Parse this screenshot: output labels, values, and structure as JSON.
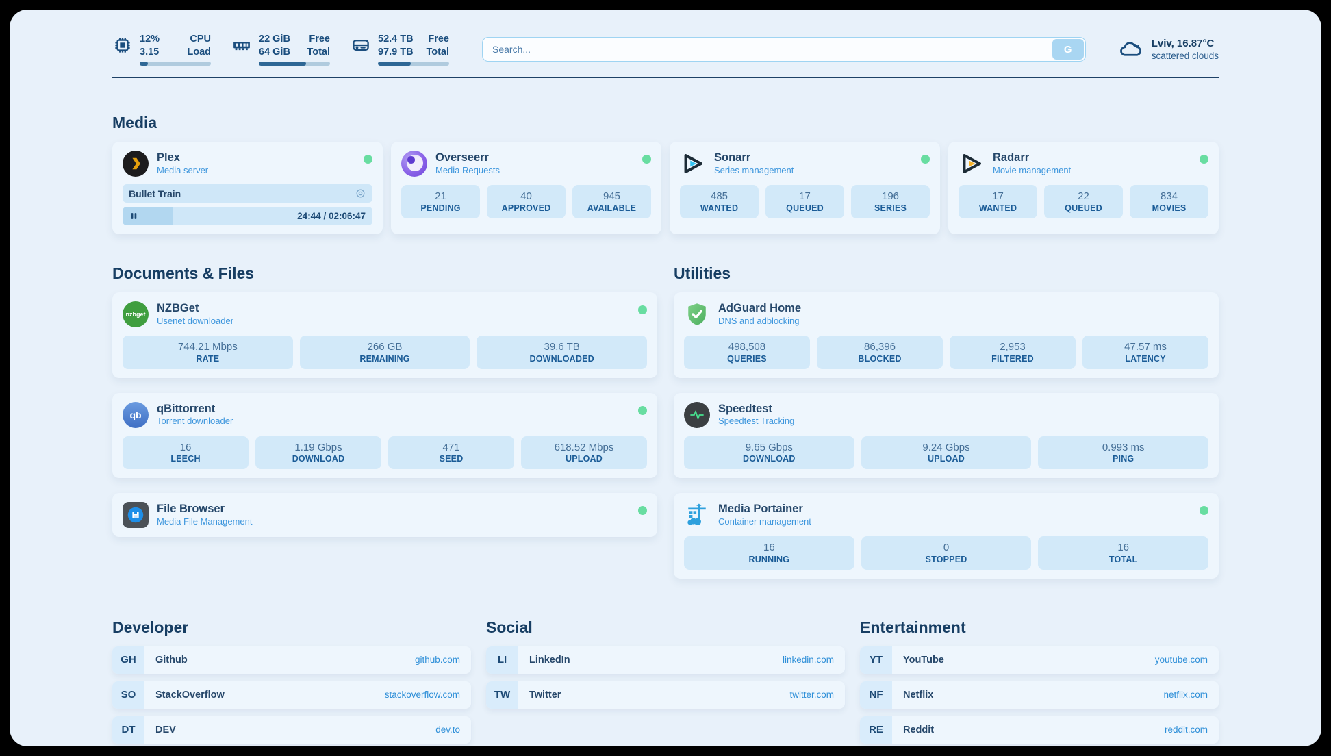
{
  "colors": {
    "background": "#e8f1fa",
    "card": "#eef6fd",
    "stat_box": "#d2e9f9",
    "accent_navy": "#1b4e7e",
    "subtitle_blue": "#3d96dd",
    "link_blue": "#2e8fd8",
    "status_online": "#68dda1",
    "progress_fill": "#2e6795"
  },
  "header": {
    "cpu": {
      "values": [
        "12%",
        "3.15"
      ],
      "labels": [
        "CPU",
        "Load"
      ],
      "progress_pct": 12
    },
    "ram": {
      "values": [
        "22 GiB",
        "64 GiB"
      ],
      "labels": [
        "Free",
        "Total"
      ],
      "progress_pct": 66
    },
    "disk": {
      "values": [
        "52.4 TB",
        "97.9 TB"
      ],
      "labels": [
        "Free",
        "Total"
      ],
      "progress_pct": 46
    },
    "search": {
      "placeholder": "Search...",
      "button_label": "G"
    },
    "weather": {
      "location": "Lviv, 16.87°C",
      "condition": "scattered clouds"
    }
  },
  "media": {
    "heading": "Media",
    "plex": {
      "title": "Plex",
      "subtitle": "Media server",
      "now_playing": "Bullet Train",
      "time": "24:44 / 02:06:47",
      "progress_pct": 20
    },
    "overseerr": {
      "title": "Overseerr",
      "subtitle": "Media Requests",
      "stats": [
        {
          "value": "21",
          "label": "PENDING"
        },
        {
          "value": "40",
          "label": "APPROVED"
        },
        {
          "value": "945",
          "label": "AVAILABLE"
        }
      ]
    },
    "sonarr": {
      "title": "Sonarr",
      "subtitle": "Series management",
      "stats": [
        {
          "value": "485",
          "label": "WANTED"
        },
        {
          "value": "17",
          "label": "QUEUED"
        },
        {
          "value": "196",
          "label": "SERIES"
        }
      ]
    },
    "radarr": {
      "title": "Radarr",
      "subtitle": "Movie management",
      "stats": [
        {
          "value": "17",
          "label": "WANTED"
        },
        {
          "value": "22",
          "label": "QUEUED"
        },
        {
          "value": "834",
          "label": "MOVIES"
        }
      ]
    }
  },
  "documents": {
    "heading": "Documents & Files",
    "nzbget": {
      "title": "NZBGet",
      "subtitle": "Usenet downloader",
      "icon_text": "nzbget",
      "stats": [
        {
          "value": "744.21 Mbps",
          "label": "RATE"
        },
        {
          "value": "266 GB",
          "label": "REMAINING"
        },
        {
          "value": "39.6 TB",
          "label": "DOWNLOADED"
        }
      ]
    },
    "qbittorrent": {
      "title": "qBittorrent",
      "subtitle": "Torrent downloader",
      "icon_text": "qb",
      "stats": [
        {
          "value": "16",
          "label": "LEECH"
        },
        {
          "value": "1.19 Gbps",
          "label": "DOWNLOAD"
        },
        {
          "value": "471",
          "label": "SEED"
        },
        {
          "value": "618.52 Mbps",
          "label": "UPLOAD"
        }
      ]
    },
    "filebrowser": {
      "title": "File Browser",
      "subtitle": "Media File Management"
    }
  },
  "utilities": {
    "heading": "Utilities",
    "adguard": {
      "title": "AdGuard Home",
      "subtitle": "DNS and adblocking",
      "stats": [
        {
          "value": "498,508",
          "label": "QUERIES"
        },
        {
          "value": "86,396",
          "label": "BLOCKED"
        },
        {
          "value": "2,953",
          "label": "FILTERED"
        },
        {
          "value": "47.57 ms",
          "label": "LATENCY"
        }
      ]
    },
    "speedtest": {
      "title": "Speedtest",
      "subtitle": "Speedtest Tracking",
      "stats": [
        {
          "value": "9.65 Gbps",
          "label": "DOWNLOAD"
        },
        {
          "value": "9.24 Gbps",
          "label": "UPLOAD"
        },
        {
          "value": "0.993 ms",
          "label": "PING"
        }
      ]
    },
    "portainer": {
      "title": "Media Portainer",
      "subtitle": "Container management",
      "stats": [
        {
          "value": "16",
          "label": "RUNNING"
        },
        {
          "value": "0",
          "label": "STOPPED"
        },
        {
          "value": "16",
          "label": "TOTAL"
        }
      ]
    }
  },
  "links": {
    "developer": {
      "heading": "Developer",
      "items": [
        {
          "abbr": "GH",
          "name": "Github",
          "url": "github.com"
        },
        {
          "abbr": "SO",
          "name": "StackOverflow",
          "url": "stackoverflow.com"
        },
        {
          "abbr": "DT",
          "name": "DEV",
          "url": "dev.to"
        }
      ]
    },
    "social": {
      "heading": "Social",
      "items": [
        {
          "abbr": "LI",
          "name": "LinkedIn",
          "url": "linkedin.com"
        },
        {
          "abbr": "TW",
          "name": "Twitter",
          "url": "twitter.com"
        }
      ]
    },
    "entertainment": {
      "heading": "Entertainment",
      "items": [
        {
          "abbr": "YT",
          "name": "YouTube",
          "url": "youtube.com"
        },
        {
          "abbr": "NF",
          "name": "Netflix",
          "url": "netflix.com"
        },
        {
          "abbr": "RE",
          "name": "Reddit",
          "url": "reddit.com"
        }
      ]
    }
  }
}
